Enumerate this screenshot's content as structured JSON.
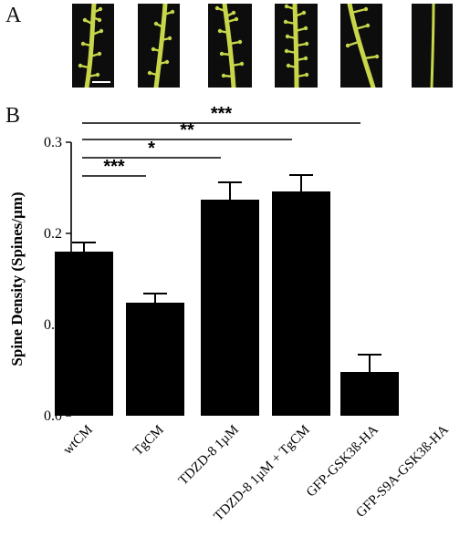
{
  "figure": {
    "panel_a_label": "A",
    "panel_b_label": "B",
    "panel_a_images": [
      {
        "name": "micrograph-wtcm",
        "scale_bar": true
      },
      {
        "name": "micrograph-tgcm",
        "scale_bar": false
      },
      {
        "name": "micrograph-tdzd8",
        "scale_bar": false
      },
      {
        "name": "micrograph-tdzd8-tgcm",
        "scale_bar": false
      },
      {
        "name": "micrograph-gfp-gsk3b-ha",
        "scale_bar": false
      },
      {
        "name": "micrograph-gfp-s9a-gsk3b-ha",
        "scale_bar": false
      }
    ],
    "colors": {
      "dendrite": "#c8d64a",
      "background": "#0d0d0d",
      "bar": "#000000"
    }
  },
  "chart_data": {
    "type": "bar",
    "title": "",
    "xlabel": "",
    "ylabel": "Spine  Density  (Spines/µm)",
    "ylim": [
      0,
      0.3
    ],
    "yticks": [
      "0.0",
      "0.1",
      "0.2",
      "0.3"
    ],
    "ytick_values": [
      0,
      0.1,
      0.2,
      0.3
    ],
    "categories": [
      "wtCM",
      "TgCM",
      "TDZD-8 1µM",
      "TDZD-8 1µM + TgCM",
      "GFP-GSK3ß-HA",
      "GFP-S9A-GSK3ß-HA"
    ],
    "values": [
      0.18,
      0.124,
      0.237,
      0.246,
      0.048,
      0
    ],
    "errors": [
      0.01,
      0.01,
      0.019,
      0.018,
      0.019,
      0
    ],
    "significance": [
      {
        "label": "***",
        "from": "wtCM",
        "to": "GFP-GSK3ß-HA"
      },
      {
        "label": "**",
        "from": "wtCM",
        "to": "TDZD-8 1µM + TgCM"
      },
      {
        "label": "*",
        "from": "wtCM",
        "to": "TDZD-8 1µM"
      },
      {
        "label": "***",
        "from": "wtCM",
        "to": "TgCM"
      }
    ]
  }
}
